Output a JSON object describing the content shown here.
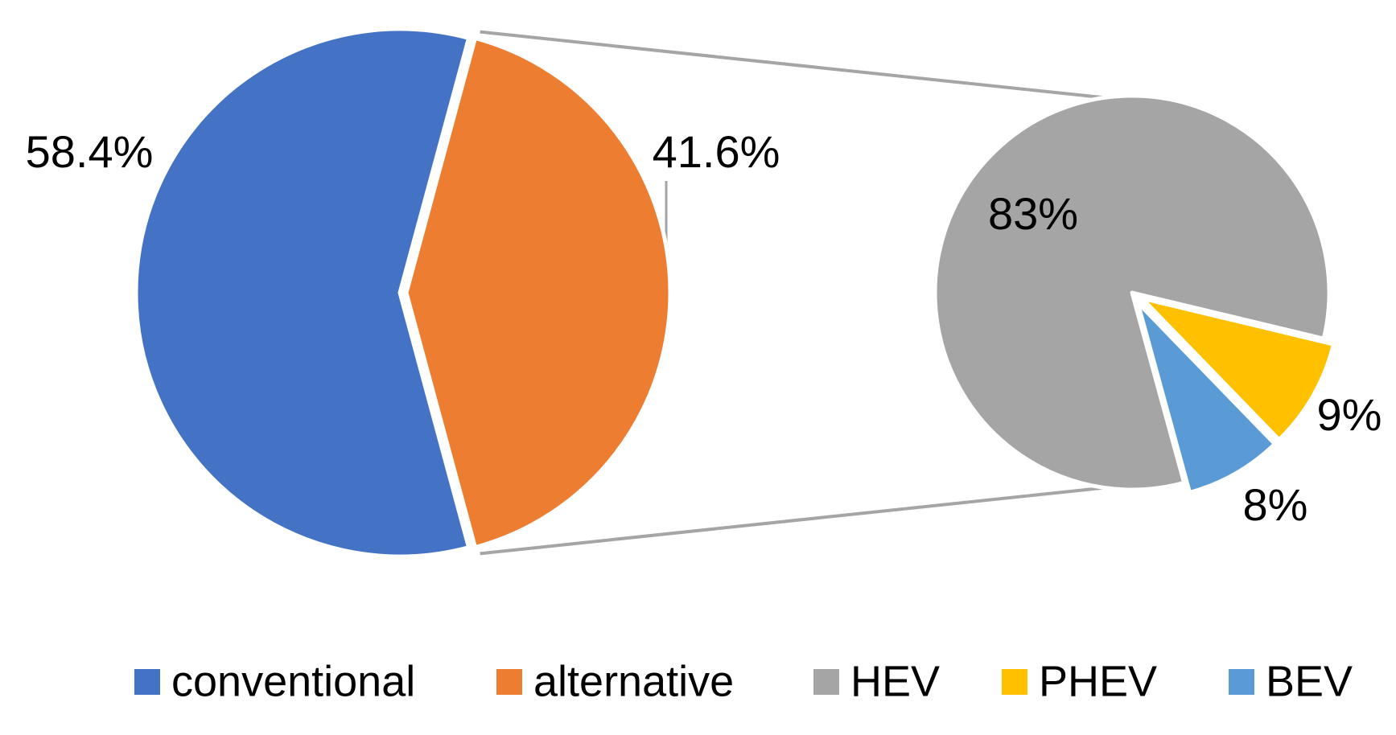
{
  "chart_data": [
    {
      "type": "pie",
      "categories": [
        "conventional",
        "alternative"
      ],
      "values": [
        58.4,
        41.6
      ],
      "value_labels": [
        "58.4%",
        "41.6%"
      ],
      "colors": [
        "#4472c4",
        "#ed7d31"
      ]
    },
    {
      "type": "pie",
      "categories": [
        "HEV",
        "PHEV",
        "BEV"
      ],
      "values": [
        83,
        9,
        8
      ],
      "value_labels": [
        "83%",
        "9%",
        "8%"
      ],
      "colors": [
        "#a5a5a5",
        "#ffc000",
        "#5b9bd5"
      ]
    }
  ]
}
